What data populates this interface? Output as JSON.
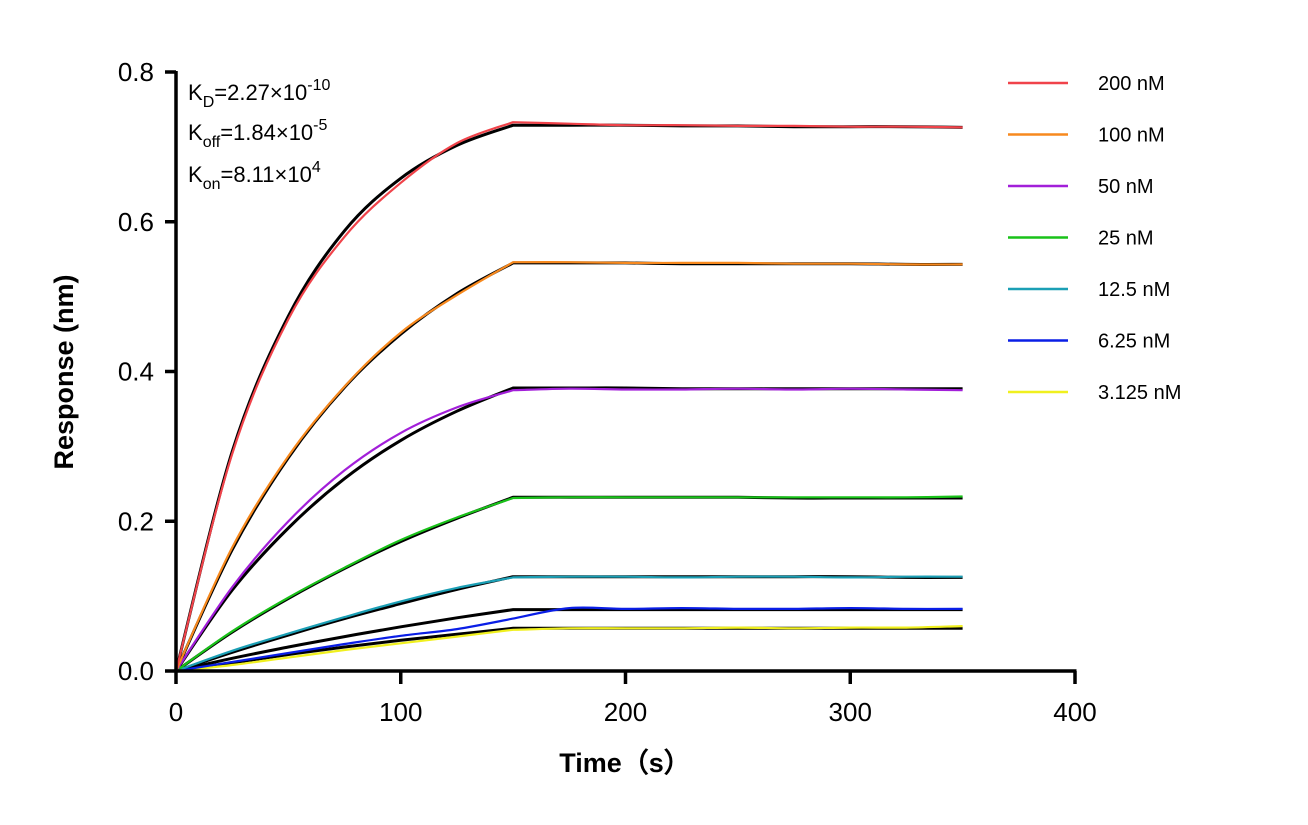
{
  "chart_data": {
    "type": "line",
    "xlabel": "Time（s）",
    "ylabel": "Response (nm)",
    "xlim": [
      0,
      400
    ],
    "ylim": [
      0,
      0.8
    ],
    "xticks": [
      "0",
      "100",
      "200",
      "300",
      "400"
    ],
    "yticks": [
      "0.0",
      "0.2",
      "0.4",
      "0.6",
      "0.8"
    ],
    "grid": false,
    "legend_position": "top-right",
    "annotations": {
      "kd": {
        "label": "K",
        "sub": "D",
        "value": "=2.27×10",
        "exp": "-10"
      },
      "koff": {
        "label": "K",
        "sub": "off",
        "value": "=1.84×10",
        "exp": "-5"
      },
      "kon": {
        "label": "K",
        "sub": "on",
        "value": "=8.11×10",
        "exp": "4"
      }
    },
    "fit_color": "#000000",
    "x": [
      0,
      25,
      50,
      75,
      100,
      125,
      150,
      175,
      200,
      225,
      250,
      275,
      300,
      325,
      350
    ],
    "series": [
      {
        "name": "200 nM",
        "color": "#f0434a",
        "values": [
          0,
          0.29,
          0.47,
          0.58,
          0.652,
          0.705,
          0.733,
          0.731,
          0.729,
          0.729,
          0.728,
          0.728,
          0.727,
          0.727,
          0.726
        ],
        "fit": [
          0,
          0.293,
          0.474,
          0.588,
          0.658,
          0.702,
          0.729,
          0.729,
          0.729,
          0.728,
          0.728,
          0.727,
          0.727,
          0.727,
          0.726
        ]
      },
      {
        "name": "100 nM",
        "color": "#f7891e",
        "values": [
          0,
          0.165,
          0.287,
          0.38,
          0.452,
          0.502,
          0.546,
          0.546,
          0.545,
          0.545,
          0.545,
          0.544,
          0.544,
          0.543,
          0.543
        ],
        "fit": [
          0,
          0.162,
          0.285,
          0.379,
          0.45,
          0.504,
          0.545,
          0.545,
          0.545,
          0.544,
          0.544,
          0.544,
          0.544,
          0.543,
          0.543
        ]
      },
      {
        "name": "50 nM",
        "color": "#a21fd9",
        "values": [
          0,
          0.112,
          0.2,
          0.268,
          0.318,
          0.352,
          0.375,
          0.377,
          0.376,
          0.376,
          0.377,
          0.376,
          0.377,
          0.376,
          0.375
        ],
        "fit": [
          0,
          0.108,
          0.191,
          0.257,
          0.308,
          0.347,
          0.378,
          0.378,
          0.378,
          0.377,
          0.377,
          0.377,
          0.377,
          0.377,
          0.377
        ]
      },
      {
        "name": "25 nM",
        "color": "#19c219",
        "values": [
          0,
          0.053,
          0.098,
          0.138,
          0.175,
          0.205,
          0.231,
          0.232,
          0.232,
          0.232,
          0.232,
          0.232,
          0.232,
          0.232,
          0.233
        ],
        "fit": [
          0,
          0.052,
          0.097,
          0.137,
          0.173,
          0.204,
          0.232,
          0.232,
          0.232,
          0.232,
          0.232,
          0.231,
          0.231,
          0.231,
          0.231
        ]
      },
      {
        "name": "12.5 nM",
        "color": "#1b9fb5",
        "values": [
          0,
          0.027,
          0.05,
          0.072,
          0.093,
          0.111,
          0.125,
          0.126,
          0.126,
          0.125,
          0.126,
          0.126,
          0.125,
          0.126,
          0.126
        ],
        "fit": [
          0,
          0.025,
          0.048,
          0.07,
          0.09,
          0.109,
          0.126,
          0.126,
          0.126,
          0.126,
          0.126,
          0.126,
          0.126,
          0.125,
          0.125
        ]
      },
      {
        "name": "6.25 nM",
        "color": "#0a1ee6",
        "values": [
          0,
          0.012,
          0.024,
          0.036,
          0.047,
          0.056,
          0.07,
          0.084,
          0.083,
          0.084,
          0.083,
          0.083,
          0.084,
          0.083,
          0.083
        ],
        "fit": [
          0,
          0.017,
          0.032,
          0.046,
          0.059,
          0.071,
          0.082,
          0.082,
          0.082,
          0.082,
          0.082,
          0.082,
          0.082,
          0.082,
          0.082
        ]
      },
      {
        "name": "3.125 nM",
        "color": "#f0f01e",
        "values": [
          0,
          0.008,
          0.018,
          0.028,
          0.037,
          0.046,
          0.055,
          0.057,
          0.057,
          0.057,
          0.058,
          0.057,
          0.058,
          0.058,
          0.06
        ],
        "fit": [
          0,
          0.011,
          0.022,
          0.032,
          0.041,
          0.049,
          0.057,
          0.057,
          0.057,
          0.057,
          0.057,
          0.057,
          0.057,
          0.057,
          0.057
        ]
      }
    ]
  }
}
